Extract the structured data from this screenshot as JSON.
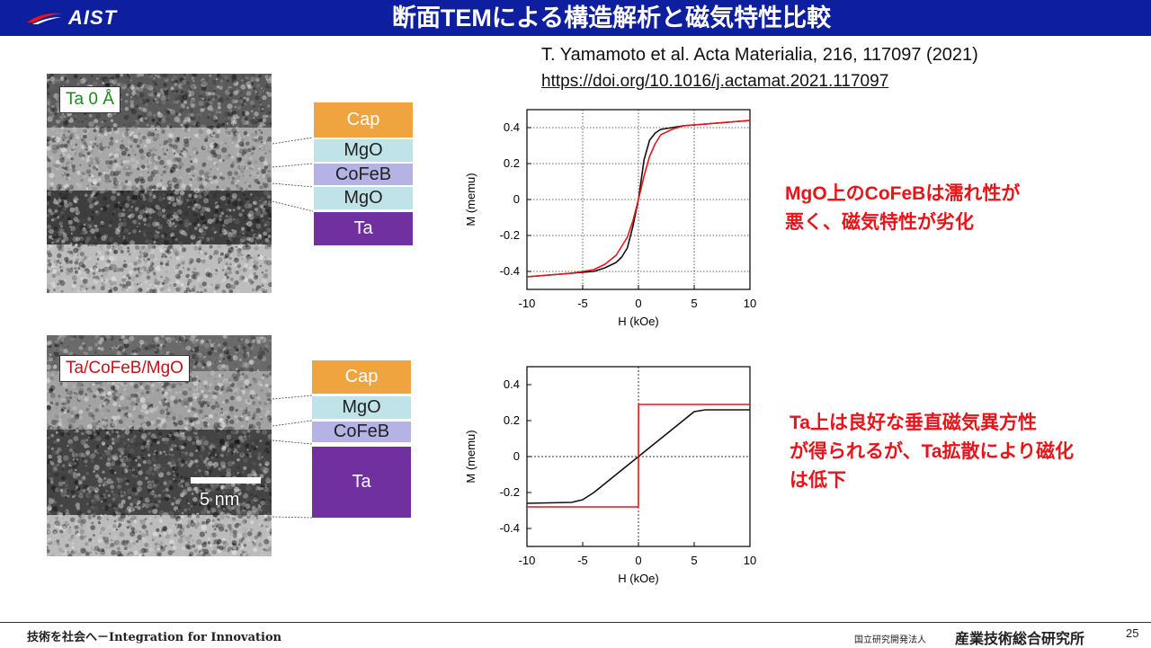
{
  "header": {
    "logo_text": "AIST",
    "title": "断面TEMによる構造解析と磁気特性比較"
  },
  "reference": {
    "citation": "T. Yamamoto et al. Acta Materialia, 216, 117097 (2021)",
    "doi": "https://doi.org/10.1016/j.actamat.2021.117097"
  },
  "samples": [
    {
      "label": "Ta 0 Å",
      "label_color": "#1a8a1a",
      "layers": [
        {
          "name": "Cap",
          "color": "#f0a440"
        },
        {
          "name": "MgO",
          "color": "#bfe3e8"
        },
        {
          "name": "CoFeB",
          "color": "#b5b3e6"
        },
        {
          "name": "MgO",
          "color": "#bfe3e8"
        },
        {
          "name": "Ta",
          "color": "#7030a0"
        }
      ],
      "annotation": [
        "MgO上のCoFeBは濡れ性が",
        "悪く、磁気特性が劣化"
      ]
    },
    {
      "label": "Ta/CoFeB/MgO",
      "label_color": "#c0141a",
      "layers": [
        {
          "name": "Cap",
          "color": "#f0a440"
        },
        {
          "name": "MgO",
          "color": "#bfe3e8"
        },
        {
          "name": "CoFeB",
          "color": "#b5b3e6"
        },
        {
          "name": "Ta",
          "color": "#7030a0"
        }
      ],
      "scale_bar": "5 nm",
      "annotation": [
        "Ta上は良好な垂直磁気異方性",
        "が得られるが、Ta拡散により磁化",
        "は低下"
      ]
    }
  ],
  "chart_data": [
    {
      "type": "line",
      "xlabel": "H (kOe)",
      "ylabel": "M (memu)",
      "xlim": [
        -10,
        10
      ],
      "ylim": [
        -0.5,
        0.5
      ],
      "xticks": [
        "-10",
        "-5",
        "0",
        "5",
        "10"
      ],
      "yticks": [
        "0.4",
        "0.2",
        "0",
        "-0.2",
        "-0.4"
      ],
      "yticks_values": [
        0.4,
        0.2,
        0,
        -0.2,
        -0.4
      ],
      "grid": "dotted",
      "series": [
        {
          "color": "#111111",
          "x": [
            -10,
            -6,
            -4,
            -3,
            -2,
            -1.5,
            -1,
            -0.5,
            0,
            0.5,
            1,
            1.5,
            2,
            3,
            4,
            6,
            10
          ],
          "y": [
            -0.43,
            -0.41,
            -0.4,
            -0.38,
            -0.35,
            -0.32,
            -0.27,
            -0.15,
            0.0,
            0.22,
            0.33,
            0.37,
            0.39,
            0.4,
            0.41,
            0.42,
            0.44
          ]
        },
        {
          "color": "#e8141a",
          "x": [
            -10,
            -6,
            -4,
            -3,
            -2,
            -1.5,
            -1,
            -0.5,
            0,
            0.5,
            1,
            1.5,
            2,
            3,
            4,
            6,
            10
          ],
          "y": [
            -0.43,
            -0.41,
            -0.39,
            -0.36,
            -0.31,
            -0.26,
            -0.21,
            -0.12,
            0.0,
            0.13,
            0.24,
            0.31,
            0.36,
            0.39,
            0.41,
            0.42,
            0.44
          ]
        }
      ]
    },
    {
      "type": "line",
      "xlabel": "H (kOe)",
      "ylabel": "M (memu)",
      "xlim": [
        -10,
        10
      ],
      "ylim": [
        -0.5,
        0.5
      ],
      "xticks": [
        "-10",
        "-5",
        "0",
        "5",
        "10"
      ],
      "yticks": [
        "0.4",
        "0.2",
        "0",
        "-0.2",
        "-0.4"
      ],
      "yticks_values": [
        0.4,
        0.2,
        0,
        -0.2,
        -0.4
      ],
      "grid": "zero-lines",
      "series": [
        {
          "color": "#111111",
          "x": [
            -10,
            -6,
            -5,
            -4,
            -2,
            0,
            2,
            4,
            5,
            6,
            10
          ],
          "y": [
            -0.26,
            -0.255,
            -0.24,
            -0.2,
            -0.1,
            0.0,
            0.1,
            0.2,
            0.25,
            0.26,
            0.26
          ]
        },
        {
          "color": "#e8141a",
          "x": [
            -10,
            -0.01,
            0.0,
            0.01,
            10
          ],
          "y": [
            -0.28,
            -0.28,
            0.0,
            0.29,
            0.29
          ]
        }
      ]
    }
  ],
  "footer": {
    "slogan": "技術を社会へ－Integration for Innovation",
    "org_small": "国立研究開発法人",
    "org": "産業技術総合研究所",
    "page": "25"
  }
}
